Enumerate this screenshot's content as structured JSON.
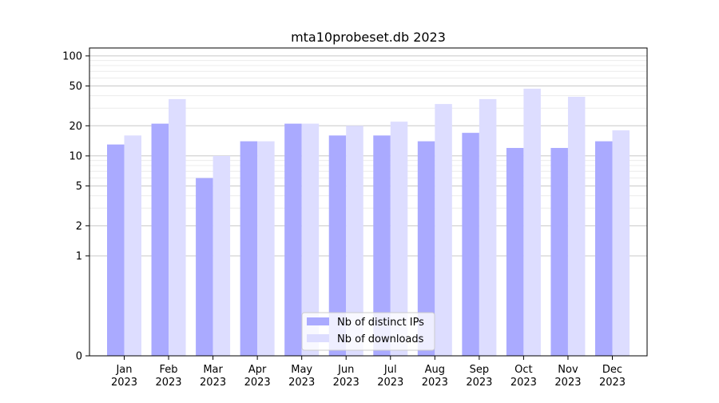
{
  "chart_data": {
    "type": "bar",
    "title": "mta10probeset.db 2023",
    "xlabel": "",
    "ylabel": "",
    "y_scale": "symlog",
    "ylim": [
      0,
      120
    ],
    "y_ticks": [
      0,
      1,
      2,
      5,
      10,
      20,
      50,
      100
    ],
    "y_tick_labels": [
      "0",
      "1",
      "2",
      "5",
      "10",
      "20",
      "50",
      "100"
    ],
    "grid": "horizontal",
    "legend_position": "bottom-center",
    "categories": [
      [
        "Jan",
        "2023"
      ],
      [
        "Feb",
        "2023"
      ],
      [
        "Mar",
        "2023"
      ],
      [
        "Apr",
        "2023"
      ],
      [
        "May",
        "2023"
      ],
      [
        "Jun",
        "2023"
      ],
      [
        "Jul",
        "2023"
      ],
      [
        "Aug",
        "2023"
      ],
      [
        "Sep",
        "2023"
      ],
      [
        "Oct",
        "2023"
      ],
      [
        "Nov",
        "2023"
      ],
      [
        "Dec",
        "2023"
      ]
    ],
    "series": [
      {
        "name": "Nb of distinct IPs",
        "color": "#aaaaff",
        "values": [
          13,
          21,
          6,
          14,
          21,
          16,
          16,
          14,
          17,
          12,
          12,
          14
        ]
      },
      {
        "name": "Nb of downloads",
        "color": "#ddddff",
        "values": [
          16,
          37,
          10,
          14,
          21,
          20,
          22,
          33,
          37,
          47,
          39,
          18
        ]
      }
    ]
  }
}
